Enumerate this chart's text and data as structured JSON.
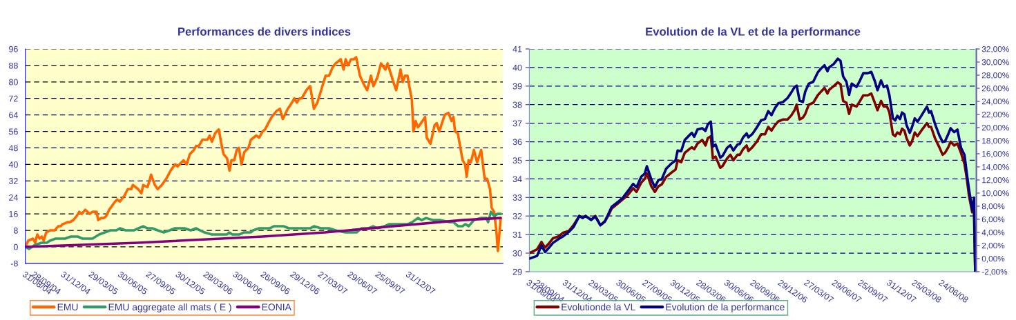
{
  "chart_data": [
    {
      "type": "line",
      "title": "Performances de divers indices",
      "xlim": [
        "2004-08-31",
        "2008-10-25"
      ],
      "ylim": [
        -8,
        96
      ],
      "yticks": [
        -8,
        0,
        8,
        16,
        24,
        32,
        40,
        48,
        56,
        64,
        72,
        80,
        88,
        96
      ],
      "xticks": [
        {
          "value": "2004-08-31",
          "label": "31/08/04"
        },
        {
          "value": "2004-09-28",
          "label": "28/09/04"
        },
        {
          "value": "2004-12-31",
          "label": "31/12/04"
        },
        {
          "value": "2005-03-29",
          "label": "29/03/05"
        },
        {
          "value": "2005-06-30",
          "label": "30/06/05"
        },
        {
          "value": "2005-09-27",
          "label": "27/09/05"
        },
        {
          "value": "2005-12-30",
          "label": "30/12/05"
        },
        {
          "value": "2006-03-28",
          "label": "28/03/06"
        },
        {
          "value": "2006-06-30",
          "label": "30/06/06"
        },
        {
          "value": "2006-09-26",
          "label": "26/09/06"
        },
        {
          "value": "2006-12-29",
          "label": "29/12/06"
        },
        {
          "value": "2007-03-27",
          "label": "27/03/07"
        },
        {
          "value": "2007-06-29",
          "label": "29/06/07"
        },
        {
          "value": "2007-09-25",
          "label": "25/09/07"
        },
        {
          "value": "2007-12-31",
          "label": "31/12/07"
        }
      ],
      "grid": "y",
      "legend": "bottom",
      "marker": "none",
      "line_style": "solid",
      "series": [
        {
          "name": "EMU",
          "color": "#ff6600",
          "x": [
            "2004-08-31",
            "2004-09-09",
            "2004-09-24",
            "2004-10-01",
            "2004-10-08",
            "2004-10-15",
            "2004-10-22",
            "2004-10-28",
            "2004-11-05",
            "2004-11-17",
            "2004-12-02",
            "2004-12-13",
            "2004-12-21",
            "2004-12-27",
            "2005-01-12",
            "2005-01-19",
            "2005-01-30",
            "2005-02-10",
            "2005-02-18",
            "2005-02-26",
            "2005-03-09",
            "2005-03-23",
            "2005-04-01",
            "2005-04-14",
            "2005-04-19",
            "2005-04-29",
            "2005-05-07",
            "2005-05-15",
            "2005-05-24",
            "2005-06-07",
            "2005-06-18",
            "2005-06-27",
            "2005-07-12",
            "2005-07-22",
            "2005-08-02",
            "2005-08-07",
            "2005-08-24",
            "2005-09-03",
            "2005-09-09",
            "2005-09-23",
            "2005-10-04",
            "2005-10-16",
            "2005-10-25",
            "2005-11-07",
            "2005-11-21",
            "2005-12-05",
            "2005-12-19",
            "2005-12-27",
            "2006-01-15",
            "2006-01-25",
            "2006-02-04",
            "2006-02-17",
            "2006-02-24",
            "2006-03-05",
            "2006-03-16",
            "2006-03-23",
            "2006-04-01",
            "2006-04-08",
            "2006-04-15",
            "2006-04-25",
            "2006-05-07",
            "2006-05-15",
            "2006-05-22",
            "2006-06-02",
            "2006-06-10",
            "2006-06-16",
            "2006-06-25",
            "2006-07-03",
            "2006-07-10",
            "2006-07-18",
            "2006-07-27",
            "2006-08-09",
            "2006-08-17",
            "2006-09-03",
            "2006-09-12",
            "2006-09-23",
            "2006-10-01",
            "2006-10-11",
            "2006-10-22",
            "2006-11-07",
            "2006-11-17",
            "2006-11-26",
            "2006-12-12",
            "2006-12-21",
            "2007-01-02",
            "2007-01-10",
            "2007-01-18",
            "2007-01-25",
            "2007-02-09",
            "2007-02-21",
            "2007-03-05",
            "2007-03-16",
            "2007-04-01",
            "2007-04-11",
            "2007-04-22",
            "2007-05-03",
            "2007-05-13",
            "2007-05-29",
            "2007-06-07",
            "2007-06-14",
            "2007-06-21",
            "2007-07-01",
            "2007-07-10",
            "2007-07-17",
            "2007-07-29",
            "2007-08-10",
            "2007-08-21",
            "2007-09-02",
            "2007-09-10",
            "2007-09-22",
            "2007-10-04",
            "2007-10-18",
            "2007-10-25",
            "2007-11-10",
            "2007-11-21",
            "2007-12-05",
            "2007-12-12",
            "2007-12-19",
            "2007-12-27",
            "2008-01-10",
            "2008-01-15",
            "2008-01-22",
            "2008-01-29",
            "2008-02-08",
            "2008-02-21",
            "2008-02-26",
            "2008-03-09",
            "2008-03-22",
            "2008-03-29",
            "2008-04-06",
            "2008-04-23",
            "2008-05-05",
            "2008-05-15",
            "2008-05-21",
            "2008-05-26",
            "2008-06-04",
            "2008-06-12",
            "2008-06-19",
            "2008-06-27",
            "2008-07-02",
            "2008-07-08",
            "2008-07-15",
            "2008-07-25",
            "2008-08-04",
            "2008-08-17",
            "2008-08-28",
            "2008-09-05",
            "2008-09-14",
            "2008-09-19",
            "2008-09-27",
            "2008-10-04",
            "2008-10-09",
            "2008-10-18"
          ],
          "values": [
            0,
            3,
            4,
            2,
            6,
            4,
            5,
            3,
            7,
            8,
            8,
            10,
            10,
            11,
            12,
            12,
            13,
            15,
            17,
            16,
            18,
            16,
            17,
            17,
            13,
            14,
            14,
            15,
            18,
            21,
            23,
            22,
            25,
            28,
            28,
            30,
            28,
            26,
            30,
            29,
            35,
            30,
            28,
            30,
            33,
            37,
            40,
            39,
            42,
            40,
            45,
            47,
            49,
            49,
            52,
            52,
            52,
            54,
            51,
            55,
            57,
            50,
            45,
            43,
            37,
            42,
            42,
            47,
            48,
            40,
            46,
            48,
            52,
            54,
            53,
            56,
            57,
            60,
            63,
            66,
            67,
            62,
            67,
            69,
            72,
            70,
            72,
            72,
            76,
            78,
            67,
            70,
            78,
            83,
            83,
            87,
            89,
            91,
            86,
            91,
            88,
            91,
            91,
            92,
            83,
            79,
            76,
            83,
            78,
            82,
            89,
            86,
            89,
            81,
            76,
            86,
            80,
            83,
            83,
            71,
            56,
            61,
            58,
            60,
            63,
            53,
            50,
            59,
            60,
            56,
            64,
            65,
            61,
            63,
            56,
            55,
            48,
            42,
            40,
            34,
            42,
            41,
            47,
            41,
            47,
            33,
            33,
            28,
            19,
            17,
            8,
            -2,
            14
          ]
        },
        {
          "name": "EMU aggregate all mats ( E )",
          "color": "#339966",
          "x": [
            "2004-08-31",
            "2004-09-11",
            "2004-10-01",
            "2004-10-22",
            "2004-11-07",
            "2004-11-17",
            "2004-12-05",
            "2004-12-16",
            "2005-01-04",
            "2005-01-22",
            "2005-02-07",
            "2005-02-13",
            "2005-02-28",
            "2005-03-16",
            "2005-04-01",
            "2005-04-22",
            "2005-05-10",
            "2005-05-28",
            "2005-06-07",
            "2005-06-16",
            "2005-06-27",
            "2005-07-15",
            "2005-07-25",
            "2005-08-10",
            "2005-08-24",
            "2005-09-09",
            "2005-09-23",
            "2005-10-08",
            "2005-10-25",
            "2005-11-13",
            "2005-12-02",
            "2005-12-19",
            "2006-01-04",
            "2006-01-18",
            "2006-02-07",
            "2006-02-24",
            "2006-03-09",
            "2006-03-23",
            "2006-04-15",
            "2006-05-07",
            "2006-05-22",
            "2006-06-02",
            "2006-06-09",
            "2006-06-19",
            "2006-07-11",
            "2006-07-25",
            "2006-08-10",
            "2006-08-17",
            "2006-08-24",
            "2006-09-12",
            "2006-09-23",
            "2006-10-15",
            "2006-10-29",
            "2006-11-28",
            "2006-12-16",
            "2007-01-15",
            "2007-02-07",
            "2007-02-21",
            "2007-03-05",
            "2007-03-27",
            "2007-04-22",
            "2007-05-13",
            "2007-06-12",
            "2007-07-04",
            "2007-07-18",
            "2007-08-03",
            "2007-08-24",
            "2007-09-09",
            "2007-09-23",
            "2007-10-15",
            "2007-10-29",
            "2007-11-21",
            "2007-12-05",
            "2007-12-27",
            "2008-01-11",
            "2008-01-29",
            "2008-02-10",
            "2008-02-24",
            "2008-03-16",
            "2008-04-08",
            "2008-05-07",
            "2008-05-21",
            "2008-06-05",
            "2008-06-19",
            "2008-06-28",
            "2008-07-08",
            "2008-07-25",
            "2008-08-17",
            "2008-09-02",
            "2008-09-08",
            "2008-09-17",
            "2008-09-27",
            "2008-10-08",
            "2008-10-18"
          ],
          "values": [
            0,
            -1,
            1,
            2,
            2,
            3,
            4,
            4,
            4,
            5,
            5,
            5,
            4,
            4,
            4,
            6,
            7,
            8,
            8,
            8,
            9,
            8,
            8,
            8,
            9,
            10,
            9,
            9,
            8,
            7,
            8,
            9,
            9,
            9,
            8,
            9,
            8,
            7,
            6,
            6,
            6,
            6,
            7,
            6,
            6,
            7,
            7,
            7,
            8,
            9,
            9,
            9,
            10,
            10,
            9,
            9,
            9,
            9,
            10,
            9,
            9,
            8,
            7,
            7,
            7,
            9,
            9,
            10,
            9,
            10,
            11,
            11,
            11,
            11,
            12,
            14,
            13,
            14,
            13,
            13,
            12,
            12,
            10,
            10,
            11,
            10,
            13,
            14,
            14,
            12,
            17,
            15,
            16,
            16
          ]
        },
        {
          "name": "EONIA",
          "color": "#800080",
          "x": [
            "2004-08-31",
            "2005-08-24",
            "2006-09-23",
            "2007-04-08",
            "2007-11-13",
            "2008-06-19",
            "2008-10-18"
          ],
          "values": [
            0,
            2,
            5,
            7,
            10,
            13,
            14
          ]
        }
      ]
    },
    {
      "type": "line",
      "title": "Evolution de la VL et de la performance",
      "xlim": [
        "2004-08-31",
        "2008-10-19"
      ],
      "ylim": [
        29,
        41
      ],
      "yticks": [
        29,
        30,
        31,
        32,
        33,
        34,
        35,
        36,
        37,
        38,
        39,
        40,
        41
      ],
      "y2lim": [
        -2,
        32
      ],
      "y2ticks": [
        {
          "value": -2,
          "label": "-2,00%"
        },
        {
          "value": 0,
          "label": "0,00%"
        },
        {
          "value": 2,
          "label": "2,00%"
        },
        {
          "value": 4,
          "label": "4,00%"
        },
        {
          "value": 6,
          "label": "6,00%"
        },
        {
          "value": 8,
          "label": "8,00%"
        },
        {
          "value": 10,
          "label": "10,00%"
        },
        {
          "value": 12,
          "label": "12,00%"
        },
        {
          "value": 14,
          "label": "14,00%"
        },
        {
          "value": 16,
          "label": "16,00%"
        },
        {
          "value": 18,
          "label": "18,00%"
        },
        {
          "value": 20,
          "label": "20,00%"
        },
        {
          "value": 22,
          "label": "22,00%"
        },
        {
          "value": 24,
          "label": "24,00%"
        },
        {
          "value": 26,
          "label": "26,00%"
        },
        {
          "value": 28,
          "label": "28,00%"
        },
        {
          "value": 30,
          "label": "30,00%"
        },
        {
          "value": 32,
          "label": "32,00%"
        }
      ],
      "xticks": [
        {
          "value": "2004-08-31",
          "label": "31/08/04"
        },
        {
          "value": "2004-09-28",
          "label": "28/09/04"
        },
        {
          "value": "2004-12-31",
          "label": "31/12/04"
        },
        {
          "value": "2005-03-29",
          "label": "29/03/05"
        },
        {
          "value": "2005-06-30",
          "label": "30/06/05"
        },
        {
          "value": "2005-09-27",
          "label": "27/09/05"
        },
        {
          "value": "2005-12-30",
          "label": "30/12/05"
        },
        {
          "value": "2006-03-28",
          "label": "28/03/06"
        },
        {
          "value": "2006-06-30",
          "label": "30/06/06"
        },
        {
          "value": "2006-09-26",
          "label": "26/09/06"
        },
        {
          "value": "2006-12-29",
          "label": "29/12/06"
        },
        {
          "value": "2007-03-27",
          "label": "27/03/07"
        },
        {
          "value": "2007-06-29",
          "label": "29/06/07"
        },
        {
          "value": "2007-09-25",
          "label": "25/09/07"
        },
        {
          "value": "2007-12-31",
          "label": "31/12/07"
        },
        {
          "value": "2008-03-25",
          "label": "25/03/08"
        },
        {
          "value": "2008-06-24",
          "label": "24/06/08"
        }
      ],
      "grid": "y",
      "legend": "bottom",
      "marker": "none",
      "line_style": "solid",
      "x": [
        "2004-08-31",
        "2004-09-26",
        "2004-10-11",
        "2004-10-23",
        "2004-11-04",
        "2004-11-19",
        "2004-12-08",
        "2004-12-23",
        "2005-01-12",
        "2005-01-27",
        "2005-02-16",
        "2005-02-27",
        "2005-03-09",
        "2005-03-28",
        "2005-04-11",
        "2005-04-28",
        "2005-05-13",
        "2005-05-24",
        "2005-06-05",
        "2005-06-28",
        "2005-07-13",
        "2005-07-28",
        "2005-08-17",
        "2005-08-28",
        "2005-09-13",
        "2005-09-25",
        "2005-10-02",
        "2005-10-17",
        "2005-10-29",
        "2005-11-10",
        "2005-11-21",
        "2005-12-06",
        "2005-12-21",
        "2006-01-07",
        "2006-01-14",
        "2006-01-26",
        "2006-02-07",
        "2006-02-22",
        "2006-03-03",
        "2006-03-11",
        "2006-03-22",
        "2006-04-07",
        "2006-04-18",
        "2006-04-26",
        "2006-05-06",
        "2006-05-13",
        "2006-05-22",
        "2006-06-07",
        "2006-06-15",
        "2006-06-30",
        "2006-07-11",
        "2006-07-21",
        "2006-08-04",
        "2006-08-12",
        "2006-08-23",
        "2006-09-04",
        "2006-09-10",
        "2006-09-23",
        "2006-10-08",
        "2006-10-23",
        "2006-11-05",
        "2006-11-16",
        "2006-11-27",
        "2006-12-09",
        "2006-12-20",
        "2007-01-05",
        "2007-01-20",
        "2007-02-01",
        "2007-02-13",
        "2007-02-20",
        "2007-03-02",
        "2007-03-13",
        "2007-03-21",
        "2007-04-02",
        "2007-04-17",
        "2007-05-02",
        "2007-05-13",
        "2007-05-25",
        "2007-06-04",
        "2007-06-10",
        "2007-06-25",
        "2007-07-09",
        "2007-07-18",
        "2007-07-27",
        "2007-08-07",
        "2007-08-16",
        "2007-08-25",
        "2007-09-10",
        "2007-09-22",
        "2007-10-03",
        "2007-10-18",
        "2007-10-30",
        "2007-11-11",
        "2007-11-20",
        "2007-12-02",
        "2007-12-11",
        "2007-12-22",
        "2007-12-30",
        "2008-01-11",
        "2008-01-19",
        "2008-01-26",
        "2008-02-04",
        "2008-02-11",
        "2008-02-19",
        "2008-02-26",
        "2008-03-08",
        "2008-03-15",
        "2008-03-25",
        "2008-04-03",
        "2008-04-16",
        "2008-05-05",
        "2008-05-12",
        "2008-05-19",
        "2008-06-01",
        "2008-06-16",
        "2008-06-27",
        "2008-07-05",
        "2008-07-16",
        "2008-07-24",
        "2008-08-05",
        "2008-08-16",
        "2008-08-28",
        "2008-09-09",
        "2008-09-16",
        "2008-09-24",
        "2008-10-05",
        "2008-10-11",
        "2008-10-15"
      ],
      "series": [
        {
          "name": "Evolutionde la VL",
          "color": "#800000",
          "values": [
            30.0,
            30.2,
            30.6,
            30.3,
            30.5,
            30.8,
            30.9,
            31.1,
            31.2,
            31.5,
            32.0,
            31.9,
            32.0,
            31.8,
            32.0,
            31.5,
            31.7,
            32.0,
            32.4,
            32.7,
            32.9,
            33.1,
            33.5,
            33.3,
            33.8,
            34.0,
            34.3,
            33.6,
            33.3,
            33.6,
            33.7,
            34.1,
            34.3,
            34.5,
            35.0,
            34.9,
            35.4,
            35.6,
            35.7,
            35.6,
            35.9,
            36.1,
            35.8,
            36.2,
            36.3,
            35.1,
            35.2,
            34.6,
            34.7,
            35.1,
            35.3,
            35.0,
            35.3,
            35.3,
            35.6,
            35.8,
            35.5,
            35.7,
            36.0,
            36.4,
            36.4,
            36.8,
            36.6,
            36.9,
            37.1,
            37.2,
            37.2,
            37.4,
            37.7,
            38.0,
            37.2,
            37.3,
            37.5,
            38.0,
            38.1,
            38.5,
            38.7,
            38.9,
            38.6,
            38.8,
            39.0,
            39.2,
            39.1,
            38.2,
            38.1,
            37.5,
            38.0,
            37.9,
            38.2,
            38.5,
            38.5,
            38.6,
            38.1,
            37.7,
            38.2,
            37.9,
            37.9,
            37.6,
            36.4,
            36.3,
            36.5,
            36.4,
            36.7,
            36.6,
            36.2,
            35.8,
            36.0,
            36.5,
            36.3,
            36.6,
            37.0,
            36.8,
            36.8,
            36.2,
            35.7,
            35.3,
            35.4,
            35.7,
            36.0,
            35.8,
            35.9,
            35.4,
            34.8,
            34.1,
            33.1,
            32.2,
            32.2,
            29.0
          ]
        },
        {
          "name": "Evolution de la performance",
          "color": "#000080",
          "axis": "y2",
          "values": [
            0.0,
            0.4,
            2.0,
            1.0,
            1.6,
            2.4,
            3.0,
            3.4,
            4.1,
            4.8,
            6.5,
            6.2,
            6.5,
            5.9,
            6.4,
            5.1,
            5.7,
            6.7,
            7.9,
            8.7,
            9.3,
            10.2,
            11.4,
            10.9,
            12.5,
            13.0,
            14.1,
            12.1,
            10.9,
            12.0,
            12.1,
            13.7,
            14.4,
            15.0,
            16.5,
            16.4,
            18.1,
            18.8,
            19.2,
            18.6,
            19.7,
            19.9,
            19.5,
            20.5,
            20.9,
            17.1,
            17.4,
            15.4,
            15.7,
            16.9,
            17.3,
            16.5,
            17.4,
            17.5,
            18.5,
            19.1,
            18.5,
            19.0,
            20.0,
            21.1,
            21.3,
            22.5,
            21.9,
            23.0,
            23.7,
            23.9,
            24.5,
            25.3,
            26.2,
            26.4,
            24.1,
            23.9,
            25.5,
            26.7,
            27.0,
            28.4,
            29.0,
            29.5,
            28.6,
            29.2,
            29.7,
            30.5,
            30.2,
            27.8,
            27.0,
            25.0,
            26.7,
            26.2,
            27.2,
            28.3,
            28.3,
            28.5,
            27.1,
            25.7,
            27.2,
            26.2,
            26.4,
            25.0,
            21.4,
            21.1,
            21.8,
            21.3,
            22.3,
            22.0,
            20.4,
            19.2,
            20.0,
            21.4,
            20.9,
            21.8,
            23.2,
            22.3,
            22.5,
            20.6,
            18.8,
            17.8,
            17.9,
            19.0,
            19.9,
            19.3,
            19.7,
            16.9,
            15.8,
            13.2,
            10.6,
            7.4,
            9.3,
            -2.0
          ]
        }
      ]
    }
  ]
}
